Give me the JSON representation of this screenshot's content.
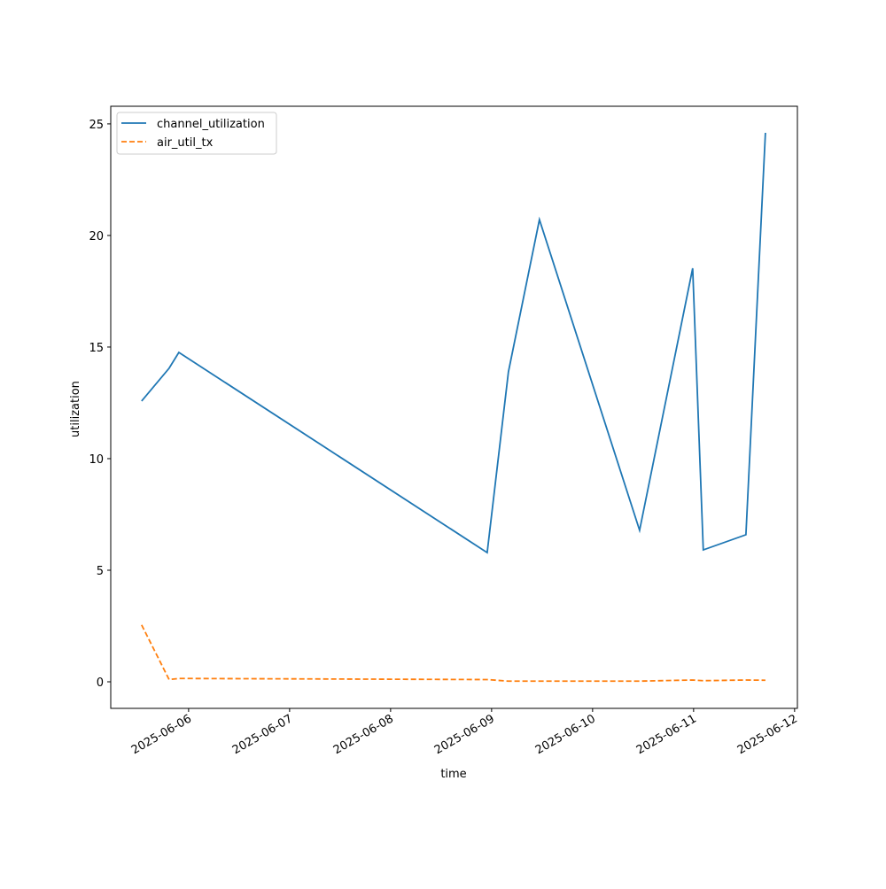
{
  "chart_data": {
    "type": "line",
    "x_label": "time",
    "y_label": "utilization",
    "x": [
      "2025-06-05T12:50",
      "2025-06-05T19:22",
      "2025-06-05T21:41",
      "2025-06-08T22:57",
      "2025-06-09T04:00",
      "2025-06-09T11:22",
      "2025-06-10T11:10",
      "2025-06-10T23:47",
      "2025-06-11T02:18",
      "2025-06-11T12:26",
      "2025-06-11T17:04"
    ],
    "series": [
      {
        "name": "channel_utilization",
        "color": "#1f77b4",
        "dash": "solid",
        "values": [
          12.58,
          14.05,
          14.76,
          5.79,
          13.89,
          20.71,
          6.79,
          18.53,
          5.91,
          6.59,
          24.6
        ]
      },
      {
        "name": "air_util_tx",
        "color": "#ff7f0e",
        "dash": "dashed",
        "values": [
          2.55,
          0.1,
          0.15,
          0.1,
          0.03,
          0.03,
          0.03,
          0.08,
          0.05,
          0.08,
          0.07
        ]
      }
    ],
    "xlim": [
      "2025-06-05T05:30",
      "2025-06-12T00:40"
    ],
    "xticks": [
      "2025-06-06",
      "2025-06-07",
      "2025-06-08",
      "2025-06-09",
      "2025-06-10",
      "2025-06-11",
      "2025-06-12"
    ],
    "ylim": [
      -1.19,
      25.79
    ],
    "yticks": [
      0,
      5,
      10,
      15,
      20,
      25
    ],
    "grid": false,
    "legend": "upper-left"
  }
}
